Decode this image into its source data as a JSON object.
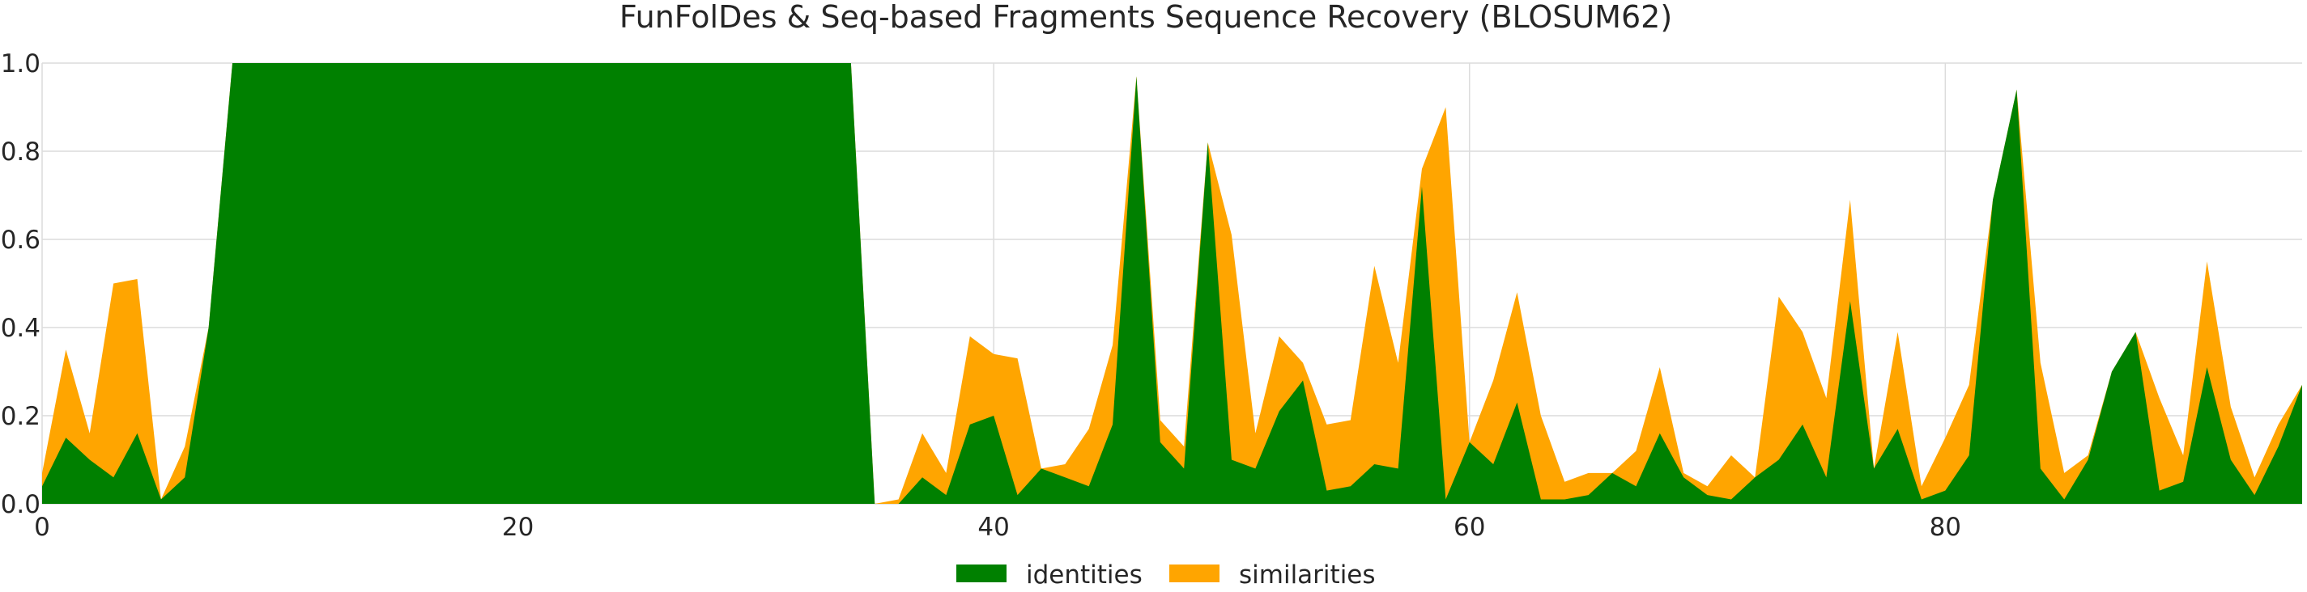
{
  "chart_data": {
    "type": "area",
    "title": "FunFolDes & Seq-based Fragments Sequence Recovery (BLOSUM62)",
    "xlabel": "",
    "ylabel": "",
    "xlim": [
      0,
      95
    ],
    "ylim": [
      0,
      1.0
    ],
    "grid": true,
    "legend_position": "bottom-center",
    "x_ticks": [
      "0",
      "20",
      "40",
      "60",
      "80"
    ],
    "y_ticks": [
      "0.0",
      "0.2",
      "0.4",
      "0.6",
      "0.8",
      "1.0"
    ],
    "x": [
      0,
      1,
      2,
      3,
      4,
      5,
      6,
      7,
      8,
      9,
      10,
      11,
      12,
      13,
      14,
      15,
      16,
      17,
      18,
      19,
      20,
      21,
      22,
      23,
      24,
      25,
      26,
      27,
      28,
      29,
      30,
      31,
      32,
      33,
      34,
      35,
      36,
      37,
      38,
      39,
      40,
      41,
      42,
      43,
      44,
      45,
      46,
      47,
      48,
      49,
      50,
      51,
      52,
      53,
      54,
      55,
      56,
      57,
      58,
      59,
      60,
      61,
      62,
      63,
      64,
      65,
      66,
      67,
      68,
      69,
      70,
      71,
      72,
      73,
      74,
      75,
      76,
      77,
      78,
      79,
      80,
      81,
      82,
      83,
      84,
      85,
      86,
      87,
      88,
      89,
      90,
      91,
      92,
      93,
      94,
      95
    ],
    "series": [
      {
        "name": "identities",
        "color": "#008000",
        "values": [
          0.04,
          0.15,
          0.1,
          0.06,
          0.16,
          0.01,
          0.06,
          0.4,
          1.0,
          1.0,
          1.0,
          1.0,
          1.0,
          1.0,
          1.0,
          1.0,
          1.0,
          1.0,
          1.0,
          1.0,
          1.0,
          1.0,
          1.0,
          1.0,
          1.0,
          1.0,
          1.0,
          1.0,
          1.0,
          1.0,
          1.0,
          1.0,
          1.0,
          1.0,
          1.0,
          0.0,
          0.0,
          0.06,
          0.02,
          0.18,
          0.2,
          0.02,
          0.08,
          0.06,
          0.04,
          0.18,
          0.97,
          0.14,
          0.08,
          0.82,
          0.1,
          0.08,
          0.21,
          0.28,
          0.03,
          0.04,
          0.09,
          0.08,
          0.72,
          0.01,
          0.14,
          0.09,
          0.23,
          0.01,
          0.01,
          0.02,
          0.07,
          0.04,
          0.16,
          0.06,
          0.02,
          0.01,
          0.06,
          0.1,
          0.18,
          0.06,
          0.46,
          0.08,
          0.17,
          0.01,
          0.03,
          0.11,
          0.69,
          0.94,
          0.08,
          0.01,
          0.1,
          0.3,
          0.39,
          0.03,
          0.05,
          0.31,
          0.1,
          0.02,
          0.13,
          0.27
        ]
      },
      {
        "name": "similarities",
        "color": "#ffa500",
        "values": [
          0.07,
          0.35,
          0.16,
          0.5,
          0.51,
          0.01,
          0.13,
          0.4,
          1.0,
          1.0,
          1.0,
          1.0,
          1.0,
          1.0,
          1.0,
          1.0,
          1.0,
          1.0,
          1.0,
          1.0,
          1.0,
          1.0,
          1.0,
          1.0,
          1.0,
          1.0,
          1.0,
          1.0,
          1.0,
          1.0,
          1.0,
          1.0,
          1.0,
          1.0,
          1.0,
          0.0,
          0.01,
          0.16,
          0.07,
          0.38,
          0.34,
          0.33,
          0.08,
          0.09,
          0.17,
          0.36,
          0.97,
          0.19,
          0.13,
          0.82,
          0.61,
          0.16,
          0.38,
          0.32,
          0.18,
          0.19,
          0.54,
          0.32,
          0.76,
          0.9,
          0.14,
          0.28,
          0.48,
          0.2,
          0.05,
          0.07,
          0.07,
          0.12,
          0.31,
          0.07,
          0.04,
          0.11,
          0.06,
          0.47,
          0.39,
          0.24,
          0.69,
          0.08,
          0.39,
          0.04,
          0.15,
          0.27,
          0.69,
          0.94,
          0.32,
          0.07,
          0.11,
          0.3,
          0.39,
          0.24,
          0.11,
          0.55,
          0.22,
          0.06,
          0.18,
          0.27
        ]
      }
    ]
  }
}
